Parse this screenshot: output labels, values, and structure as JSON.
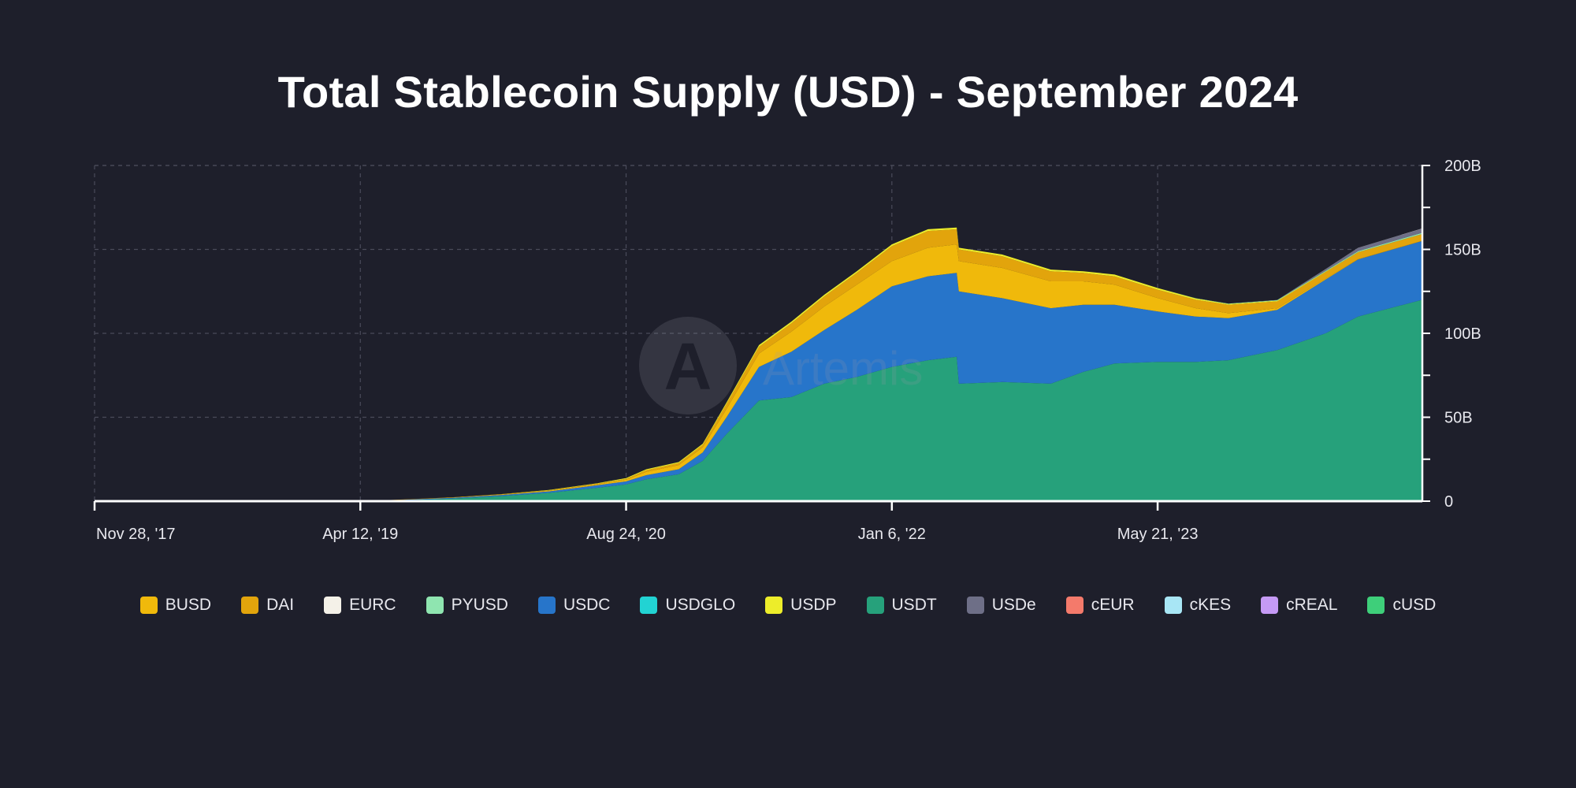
{
  "chart_data": {
    "type": "area",
    "title": "Total Stablecoin Supply (USD) - September 2024",
    "xlabel": "",
    "ylabel": "",
    "ylim": [
      0,
      200
    ],
    "y_ticks": [
      {
        "value": 0,
        "label": "0"
      },
      {
        "value": 50,
        "label": "50B"
      },
      {
        "value": 100,
        "label": "100B"
      },
      {
        "value": 150,
        "label": "150B"
      },
      {
        "value": 200,
        "label": "200B"
      }
    ],
    "x_ticks": [
      {
        "date": "2017-11-28",
        "label": "Nov 28, '17"
      },
      {
        "date": "2019-04-12",
        "label": "Apr 12, '19"
      },
      {
        "date": "2020-08-24",
        "label": "Aug 24, '20"
      },
      {
        "date": "2022-01-06",
        "label": "Jan 6, '22"
      },
      {
        "date": "2023-05-21",
        "label": "May 21, '23"
      }
    ],
    "x": [
      "2017-11-28",
      "2019-04-12",
      "2019-07-01",
      "2019-10-01",
      "2020-01-01",
      "2020-04-01",
      "2020-07-01",
      "2020-08-24",
      "2020-10-01",
      "2020-12-01",
      "2021-01-15",
      "2021-03-01",
      "2021-05-01",
      "2021-07-01",
      "2021-09-01",
      "2021-11-01",
      "2022-01-06",
      "2022-03-15",
      "2022-05-08",
      "2022-05-12",
      "2022-08-01",
      "2022-11-01",
      "2023-01-01",
      "2023-03-01",
      "2023-05-21",
      "2023-08-01",
      "2023-10-01",
      "2024-01-01",
      "2024-04-01",
      "2024-06-01",
      "2024-09-30"
    ],
    "series": [
      {
        "name": "USDT",
        "color": "#26a17b",
        "values": [
          0,
          0,
          0.5,
          1.5,
          3,
          5,
          8,
          10,
          13,
          16,
          24,
          40,
          60,
          62,
          70,
          74,
          80,
          84,
          86,
          70,
          71,
          70,
          77,
          82,
          83,
          83,
          84,
          90,
          100,
          110,
          120
        ]
      },
      {
        "name": "USDC",
        "color": "#2775ca",
        "values": [
          0,
          0,
          0.3,
          0.5,
          0.6,
          0.8,
          1.5,
          1.8,
          2.5,
          3,
          5,
          10,
          20,
          27,
          32,
          40,
          48,
          50,
          50,
          55,
          50,
          45,
          40,
          35,
          30,
          27,
          25,
          24,
          32,
          34,
          35
        ]
      },
      {
        "name": "BUSD",
        "color": "#f0b90b",
        "values": [
          0,
          0,
          0.1,
          0.2,
          0.3,
          0.5,
          0.5,
          1,
          2,
          2.5,
          3,
          5,
          8,
          12,
          14,
          15,
          15,
          17,
          17,
          18,
          18,
          16,
          14,
          12,
          8,
          5,
          3,
          1,
          0.5,
          0.2,
          0.1
        ]
      },
      {
        "name": "DAI",
        "color": "#e2a40c",
        "values": [
          0,
          0,
          0.1,
          0.1,
          0.2,
          0.2,
          0.4,
          0.5,
          1,
          1.2,
          1.5,
          3,
          4,
          5,
          6,
          7,
          9,
          10,
          9,
          7,
          7,
          6,
          5,
          5,
          5,
          5,
          5,
          4,
          4,
          4,
          4
        ]
      },
      {
        "name": "USDP",
        "color": "#eded2a",
        "values": [
          0,
          0,
          0,
          0,
          0.1,
          0.2,
          0.3,
          0.4,
          0.5,
          0.6,
          0.7,
          0.8,
          1,
          1,
          1,
          1,
          1,
          1,
          1,
          1,
          1,
          1,
          1,
          1,
          1,
          0.8,
          0.5,
          0.5,
          0.3,
          0.2,
          0.1
        ]
      },
      {
        "name": "PYUSD",
        "color": "#8fe5b0",
        "values": [
          0,
          0,
          0,
          0,
          0,
          0,
          0,
          0,
          0,
          0,
          0,
          0,
          0,
          0,
          0,
          0,
          0,
          0,
          0,
          0,
          0,
          0,
          0,
          0,
          0,
          0.1,
          0.2,
          0.3,
          0.4,
          0.5,
          0.7
        ]
      },
      {
        "name": "USDe",
        "color": "#6e6f87",
        "values": [
          0,
          0,
          0,
          0,
          0,
          0,
          0,
          0,
          0,
          0,
          0,
          0,
          0,
          0,
          0,
          0,
          0,
          0,
          0,
          0,
          0,
          0,
          0,
          0,
          0,
          0,
          0,
          0.1,
          1,
          2,
          2.5
        ]
      },
      {
        "name": "EURC",
        "color": "#f4f1e8",
        "values": [
          0,
          0,
          0,
          0,
          0,
          0,
          0,
          0,
          0,
          0,
          0,
          0,
          0,
          0,
          0,
          0,
          0,
          0,
          0,
          0,
          0,
          0,
          0,
          0,
          0,
          0,
          0,
          0,
          0.05,
          0.05,
          0.1
        ]
      },
      {
        "name": "USDGLO",
        "color": "#22d3d3",
        "values": [
          0,
          0,
          0,
          0,
          0,
          0,
          0,
          0,
          0,
          0,
          0,
          0,
          0,
          0,
          0,
          0,
          0,
          0,
          0,
          0,
          0,
          0,
          0,
          0,
          0,
          0,
          0,
          0,
          0,
          0,
          0
        ]
      },
      {
        "name": "cEUR",
        "color": "#f47a6b",
        "values": [
          0,
          0,
          0,
          0,
          0,
          0,
          0,
          0,
          0,
          0,
          0,
          0,
          0,
          0,
          0,
          0,
          0,
          0,
          0,
          0,
          0,
          0,
          0,
          0,
          0,
          0,
          0,
          0,
          0,
          0,
          0
        ]
      },
      {
        "name": "cKES",
        "color": "#a8e6f5",
        "values": [
          0,
          0,
          0,
          0,
          0,
          0,
          0,
          0,
          0,
          0,
          0,
          0,
          0,
          0,
          0,
          0,
          0,
          0,
          0,
          0,
          0,
          0,
          0,
          0,
          0,
          0,
          0,
          0,
          0,
          0,
          0
        ]
      },
      {
        "name": "cREAL",
        "color": "#c59af5",
        "values": [
          0,
          0,
          0,
          0,
          0,
          0,
          0,
          0,
          0,
          0,
          0,
          0,
          0,
          0,
          0,
          0,
          0,
          0,
          0,
          0,
          0,
          0,
          0,
          0,
          0,
          0,
          0,
          0,
          0,
          0,
          0
        ]
      },
      {
        "name": "cUSD",
        "color": "#3ecf7a",
        "values": [
          0,
          0,
          0,
          0,
          0,
          0,
          0,
          0,
          0,
          0,
          0,
          0,
          0,
          0,
          0,
          0,
          0,
          0,
          0,
          0,
          0,
          0,
          0,
          0,
          0,
          0,
          0,
          0,
          0,
          0,
          0
        ]
      }
    ],
    "legend": {
      "position": "bottom",
      "items": [
        "BUSD",
        "DAI",
        "EURC",
        "PYUSD",
        "USDC",
        "USDGLO",
        "USDP",
        "USDT",
        "USDe",
        "cEUR",
        "cKES",
        "cREAL",
        "cUSD"
      ]
    },
    "grid": true,
    "y_axis_side": "right"
  },
  "watermark": {
    "text": "Artemis",
    "glyph": "A"
  }
}
